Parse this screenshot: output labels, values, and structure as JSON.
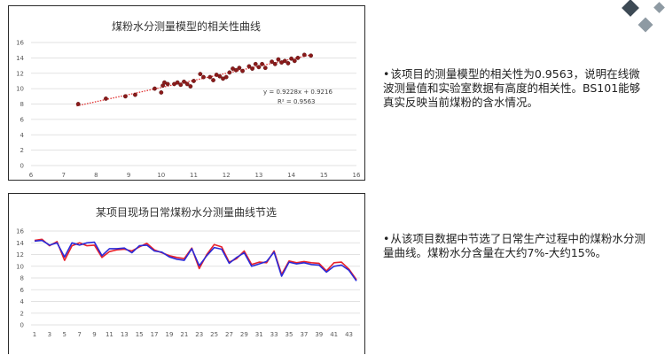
{
  "notes": [
    {
      "bullet": "•",
      "text": "该项目的测量模型的相关性为0.9563，说明在线微波测量值和实验室数据有高度的相关性。BS101能够真实反映当前煤粉的含水情况。"
    },
    {
      "bullet": "•",
      "text": "从该项目数据中节选了日常生产过程中的煤粉水分测量曲线。煤粉水分含量在大约7%-大约15%。"
    }
  ],
  "colors": {
    "scatter_point": "#8b1a1a",
    "trendline": "#e03030",
    "series_red": "#e8202a",
    "series_blue": "#2a2ad8",
    "grid": "#d9d9d9",
    "deco_dark": "#3d4a55",
    "deco_gray": "#8e9aa3"
  },
  "chart_data": [
    {
      "type": "scatter",
      "title": "煤粉水分测量模型的相关性曲线",
      "xlim": [
        6,
        16
      ],
      "ylim": [
        0,
        16
      ],
      "xticks": [
        6,
        7,
        8,
        9,
        10,
        11,
        12,
        13,
        14,
        15,
        16
      ],
      "yticks": [
        0,
        2,
        4,
        6,
        8,
        10,
        12,
        14,
        16
      ],
      "grid": true,
      "trendline": {
        "slope": 0.9228,
        "intercept": 0.9216,
        "x_range": [
          7.4,
          14.6
        ],
        "style": "dotted"
      },
      "equation_label": "y = 0.9228x + 0.9216",
      "r2_label": "R² = 0.9563",
      "points": [
        [
          7.45,
          8.0
        ],
        [
          8.3,
          8.7
        ],
        [
          8.9,
          9.0
        ],
        [
          9.2,
          9.2
        ],
        [
          9.8,
          10.0
        ],
        [
          10.0,
          9.5
        ],
        [
          10.05,
          10.4
        ],
        [
          10.1,
          10.8
        ],
        [
          10.2,
          10.6
        ],
        [
          10.4,
          10.6
        ],
        [
          10.5,
          10.8
        ],
        [
          10.6,
          10.5
        ],
        [
          10.7,
          10.9
        ],
        [
          10.8,
          10.6
        ],
        [
          10.9,
          10.3
        ],
        [
          11.0,
          11.0
        ],
        [
          11.2,
          11.9
        ],
        [
          11.3,
          11.5
        ],
        [
          11.5,
          11.5
        ],
        [
          11.6,
          11.1
        ],
        [
          11.7,
          11.8
        ],
        [
          11.8,
          11.6
        ],
        [
          11.9,
          11.3
        ],
        [
          12.0,
          11.5
        ],
        [
          12.1,
          12.1
        ],
        [
          12.2,
          12.6
        ],
        [
          12.3,
          12.4
        ],
        [
          12.4,
          12.7
        ],
        [
          12.5,
          12.3
        ],
        [
          12.7,
          12.9
        ],
        [
          12.8,
          12.6
        ],
        [
          12.9,
          13.2
        ],
        [
          13.0,
          12.8
        ],
        [
          13.1,
          13.2
        ],
        [
          13.2,
          12.7
        ],
        [
          13.4,
          13.5
        ],
        [
          13.5,
          13.2
        ],
        [
          13.6,
          13.8
        ],
        [
          13.7,
          13.4
        ],
        [
          13.8,
          13.6
        ],
        [
          13.9,
          13.3
        ],
        [
          14.0,
          13.9
        ],
        [
          14.1,
          13.6
        ],
        [
          14.2,
          14.0
        ],
        [
          14.4,
          14.4
        ],
        [
          14.6,
          14.3
        ]
      ]
    },
    {
      "type": "line",
      "title": "某项目现场日常煤粉水分测量曲线节选",
      "ylim": [
        0,
        16
      ],
      "yticks": [
        0,
        2,
        4,
        6,
        8,
        10,
        12,
        14,
        16
      ],
      "xticks": [
        1,
        3,
        5,
        7,
        9,
        11,
        13,
        15,
        17,
        19,
        21,
        23,
        25,
        27,
        29,
        31,
        33,
        35,
        37,
        39,
        41,
        43
      ],
      "grid": true,
      "x": [
        1,
        2,
        3,
        4,
        5,
        6,
        7,
        8,
        9,
        10,
        11,
        12,
        13,
        14,
        15,
        16,
        17,
        18,
        19,
        20,
        21,
        22,
        23,
        24,
        25,
        26,
        27,
        28,
        29,
        30,
        31,
        32,
        33,
        34,
        35,
        36,
        37,
        38,
        39,
        40,
        41,
        42,
        43,
        44
      ],
      "series": [
        {
          "color": "#e8202a",
          "values": [
            14.4,
            14.6,
            13.5,
            14.2,
            11.0,
            13.5,
            14.0,
            13.5,
            13.6,
            11.5,
            12.5,
            12.8,
            12.9,
            12.6,
            13.3,
            13.9,
            12.8,
            12.3,
            11.8,
            11.5,
            11.3,
            13.1,
            9.6,
            12.0,
            13.7,
            13.3,
            10.7,
            11.3,
            12.6,
            10.3,
            10.7,
            10.6,
            12.6,
            8.6,
            10.9,
            10.6,
            10.8,
            10.6,
            10.5,
            9.2,
            10.6,
            10.7,
            9.5,
            7.7
          ]
        },
        {
          "color": "#2a2ad8",
          "values": [
            14.3,
            14.4,
            13.6,
            14.0,
            11.6,
            14.0,
            13.6,
            14.0,
            14.1,
            11.8,
            13.0,
            13.0,
            13.1,
            12.3,
            13.5,
            13.6,
            12.6,
            12.4,
            11.6,
            11.2,
            11.0,
            13.0,
            10.1,
            11.8,
            13.2,
            12.9,
            10.5,
            11.5,
            12.3,
            10.0,
            10.4,
            10.8,
            12.4,
            8.3,
            10.7,
            10.4,
            10.6,
            10.3,
            10.2,
            9.0,
            10.0,
            10.2,
            9.3,
            7.5
          ]
        }
      ]
    }
  ]
}
